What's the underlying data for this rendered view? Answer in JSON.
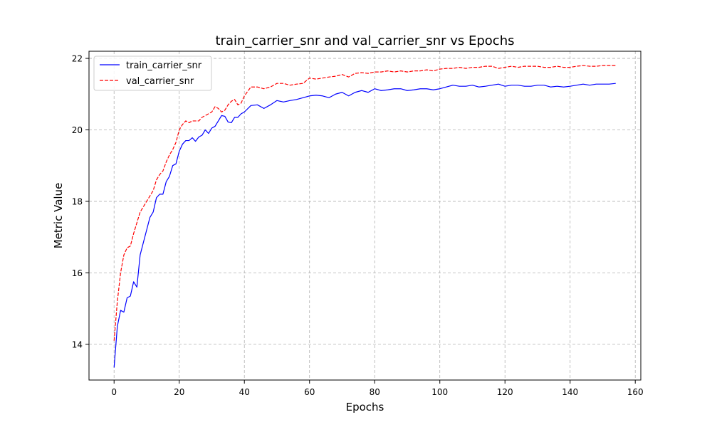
{
  "chart_data": {
    "type": "line",
    "title": "train_carrier_snr and val_carrier_snr vs Epochs",
    "xlabel": "Epochs",
    "ylabel": "Metric Value",
    "xlim": [
      -7.7,
      161.7
    ],
    "ylim": [
      13.0,
      22.2
    ],
    "xticks": [
      0,
      20,
      40,
      60,
      80,
      100,
      120,
      140,
      160
    ],
    "yticks": [
      14,
      16,
      18,
      20,
      22
    ],
    "grid": true,
    "legend_position": "top-left",
    "series": [
      {
        "name": "train_carrier_snr",
        "color": "#0000ff",
        "dash": "solid",
        "x": [
          0,
          1,
          2,
          3,
          4,
          5,
          6,
          7,
          8,
          9,
          10,
          11,
          12,
          13,
          14,
          15,
          16,
          17,
          18,
          19,
          20,
          21,
          22,
          23,
          24,
          25,
          26,
          27,
          28,
          29,
          30,
          31,
          32,
          33,
          34,
          35,
          36,
          37,
          38,
          39,
          40,
          42,
          44,
          46,
          48,
          50,
          52,
          54,
          56,
          58,
          60,
          62,
          64,
          66,
          68,
          70,
          72,
          74,
          76,
          78,
          80,
          82,
          84,
          86,
          88,
          90,
          92,
          94,
          96,
          98,
          100,
          102,
          104,
          106,
          108,
          110,
          112,
          114,
          116,
          118,
          120,
          122,
          124,
          126,
          128,
          130,
          132,
          134,
          136,
          138,
          140,
          142,
          144,
          146,
          148,
          150,
          152,
          154
        ],
        "values": [
          13.35,
          14.5,
          14.95,
          14.9,
          15.3,
          15.35,
          15.75,
          15.6,
          16.5,
          16.85,
          17.2,
          17.55,
          17.7,
          18.1,
          18.2,
          18.2,
          18.55,
          18.7,
          19.0,
          19.05,
          19.4,
          19.6,
          19.7,
          19.7,
          19.78,
          19.68,
          19.8,
          19.85,
          20.0,
          19.9,
          20.05,
          20.1,
          20.25,
          20.4,
          20.38,
          20.22,
          20.2,
          20.35,
          20.35,
          20.45,
          20.5,
          20.68,
          20.7,
          20.6,
          20.7,
          20.82,
          20.78,
          20.82,
          20.85,
          20.9,
          20.95,
          20.97,
          20.95,
          20.9,
          21.0,
          21.05,
          20.95,
          21.05,
          21.1,
          21.05,
          21.15,
          21.1,
          21.12,
          21.15,
          21.15,
          21.1,
          21.12,
          21.15,
          21.15,
          21.12,
          21.15,
          21.2,
          21.25,
          21.22,
          21.22,
          21.25,
          21.2,
          21.22,
          21.25,
          21.28,
          21.22,
          21.25,
          21.25,
          21.22,
          21.22,
          21.25,
          21.25,
          21.2,
          21.22,
          21.2,
          21.22,
          21.25,
          21.28,
          21.25,
          21.28,
          21.28,
          21.28,
          21.3
        ]
      },
      {
        "name": "val_carrier_snr",
        "color": "#ff0000",
        "dash": "dashed",
        "x": [
          0,
          1,
          2,
          3,
          4,
          5,
          6,
          7,
          8,
          9,
          10,
          11,
          12,
          13,
          14,
          15,
          16,
          17,
          18,
          19,
          20,
          21,
          22,
          23,
          24,
          25,
          26,
          27,
          28,
          29,
          30,
          31,
          32,
          33,
          34,
          35,
          36,
          37,
          38,
          39,
          40,
          42,
          44,
          46,
          48,
          50,
          52,
          54,
          56,
          58,
          60,
          62,
          64,
          66,
          68,
          70,
          72,
          74,
          76,
          78,
          80,
          82,
          84,
          86,
          88,
          90,
          92,
          94,
          96,
          98,
          100,
          102,
          104,
          106,
          108,
          110,
          112,
          114,
          116,
          118,
          120,
          122,
          124,
          126,
          128,
          130,
          132,
          134,
          136,
          138,
          140,
          142,
          144,
          146,
          148,
          150,
          152,
          154
        ],
        "values": [
          14.1,
          15.2,
          16.0,
          16.5,
          16.7,
          16.75,
          17.1,
          17.4,
          17.7,
          17.85,
          18.0,
          18.15,
          18.3,
          18.6,
          18.75,
          18.85,
          19.1,
          19.3,
          19.45,
          19.65,
          20.0,
          20.15,
          20.25,
          20.2,
          20.25,
          20.25,
          20.25,
          20.35,
          20.4,
          20.45,
          20.5,
          20.65,
          20.6,
          20.5,
          20.55,
          20.7,
          20.8,
          20.85,
          20.7,
          20.75,
          20.95,
          21.2,
          21.2,
          21.15,
          21.2,
          21.3,
          21.3,
          21.25,
          21.28,
          21.3,
          21.45,
          21.42,
          21.45,
          21.48,
          21.5,
          21.55,
          21.48,
          21.58,
          21.6,
          21.58,
          21.62,
          21.62,
          21.65,
          21.62,
          21.65,
          21.62,
          21.65,
          21.65,
          21.68,
          21.65,
          21.7,
          21.72,
          21.72,
          21.75,
          21.72,
          21.75,
          21.75,
          21.78,
          21.78,
          21.72,
          21.75,
          21.78,
          21.75,
          21.78,
          21.78,
          21.78,
          21.75,
          21.75,
          21.78,
          21.75,
          21.75,
          21.78,
          21.8,
          21.78,
          21.78,
          21.8,
          21.8,
          21.8
        ]
      }
    ]
  }
}
